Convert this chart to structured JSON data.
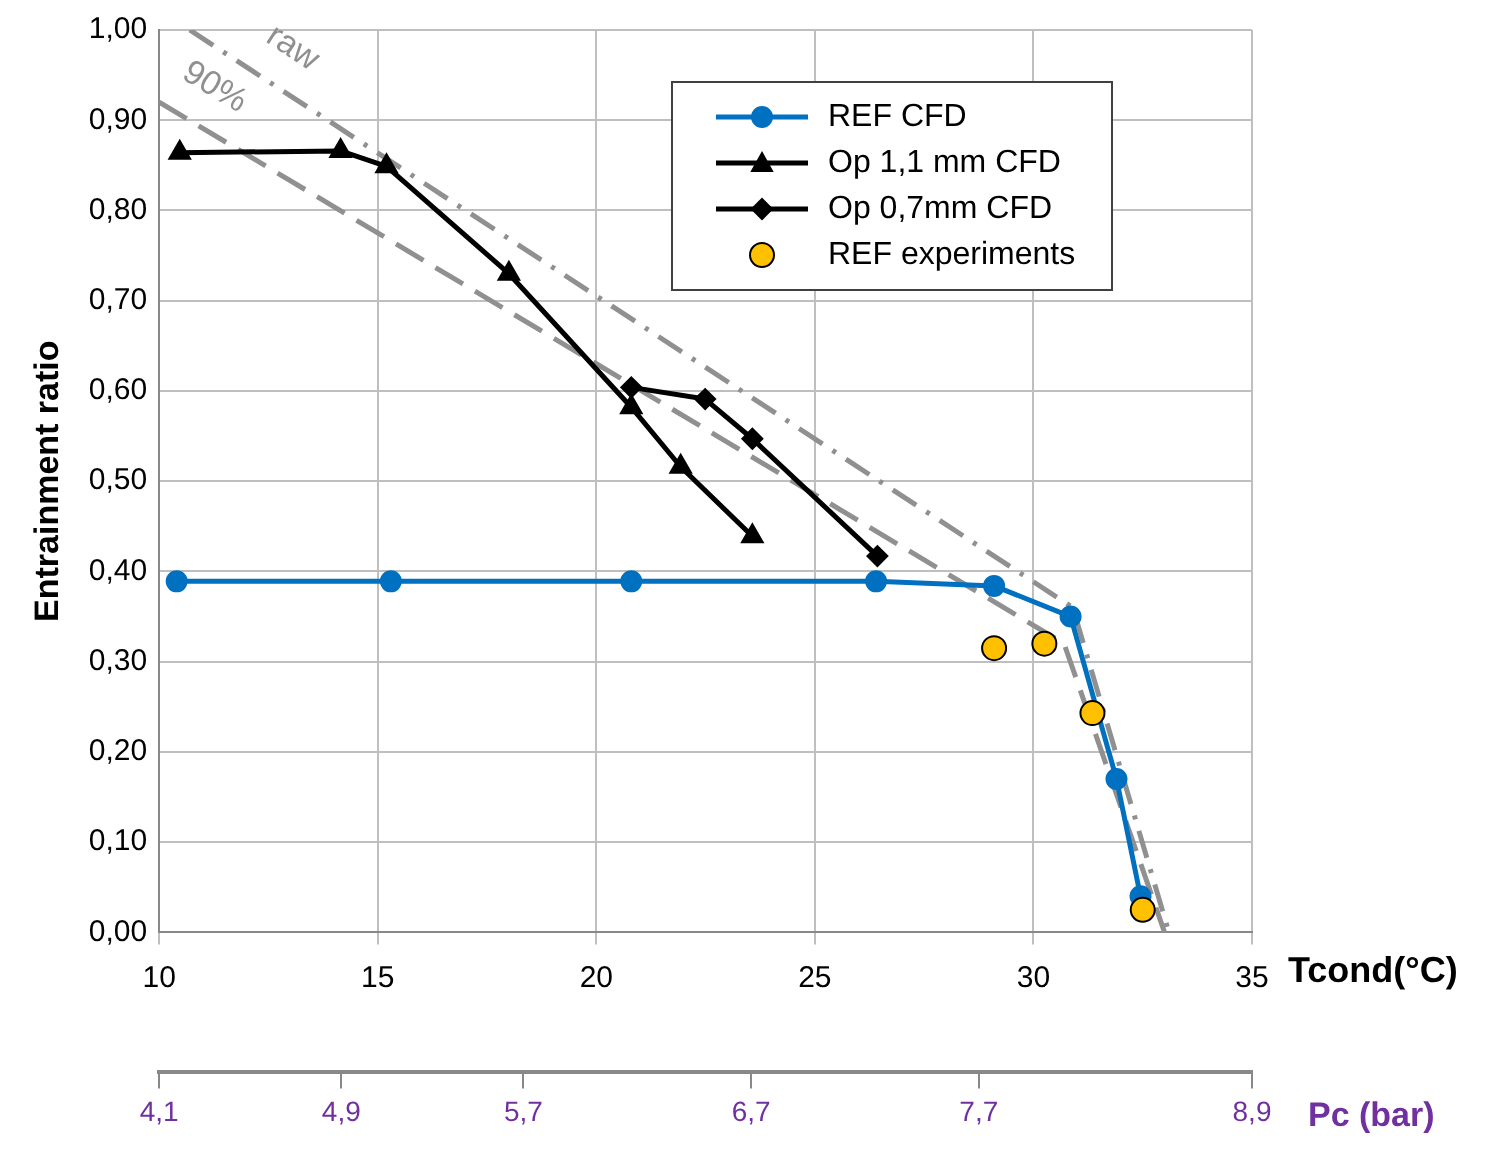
{
  "chart_data": {
    "type": "line",
    "xlabel": "Tcond(°C)",
    "ylabel": "Entrainment ratio",
    "x2label": "Pc (bar)",
    "xlim": [
      10,
      35
    ],
    "xticks": [
      10,
      15,
      20,
      25,
      30,
      35
    ],
    "x2lim": [
      4.1,
      8.9
    ],
    "x2ticks": [
      {
        "value": 4.1,
        "label": "4,1"
      },
      {
        "value": 4.9,
        "label": "4,9"
      },
      {
        "value": 5.7,
        "label": "5,7"
      },
      {
        "value": 6.7,
        "label": "6,7"
      },
      {
        "value": 7.7,
        "label": "7,7"
      },
      {
        "value": 8.9,
        "label": "8,9"
      }
    ],
    "ylim": [
      0,
      1
    ],
    "yticks": [
      {
        "value": 0,
        "label": "0,00"
      },
      {
        "value": 0.1,
        "label": "0,10"
      },
      {
        "value": 0.2,
        "label": "0,20"
      },
      {
        "value": 0.3,
        "label": "0,30"
      },
      {
        "value": 0.4,
        "label": "0,40"
      },
      {
        "value": 0.5,
        "label": "0,50"
      },
      {
        "value": 0.6,
        "label": "0,60"
      },
      {
        "value": 0.7,
        "label": "0,70"
      },
      {
        "value": 0.8,
        "label": "0,80"
      },
      {
        "value": 0.9,
        "label": "0,90"
      },
      {
        "value": 1,
        "label": "1,00"
      }
    ],
    "grid": true,
    "legend": "top right",
    "series": [
      {
        "name": "REF CFD",
        "type": "line",
        "color": "#0070c0",
        "marker": "circle",
        "line_style": "solid",
        "x": [
          10.4,
          15.3,
          20.8,
          26.4,
          29.1,
          30.85,
          31.9,
          32.45
        ],
        "values": [
          0.389,
          0.389,
          0.389,
          0.389,
          0.384,
          0.35,
          0.17,
          0.04
        ]
      },
      {
        "name": "Op 1,1 mm CFD",
        "type": "line",
        "color": "#000000",
        "marker": "triangle",
        "line_style": "solid",
        "x": [
          10.47,
          14.15,
          15.2,
          18.0,
          20.8,
          21.93,
          23.57
        ],
        "values": [
          0.864,
          0.866,
          0.849,
          0.73,
          0.582,
          0.516,
          0.439
        ]
      },
      {
        "name": "Op 0,7mm CFD",
        "type": "line",
        "color": "#000000",
        "marker": "diamond",
        "line_style": "solid",
        "x": [
          20.8,
          22.49,
          23.57,
          26.43
        ],
        "values": [
          0.604,
          0.591,
          0.547,
          0.417
        ]
      },
      {
        "name": "REF experiments",
        "type": "scatter",
        "color": "#ffc000",
        "marker": "circle",
        "x": [
          29.1,
          30.25,
          31.35,
          32.5
        ],
        "values": [
          0.315,
          0.32,
          0.243,
          0.025
        ]
      },
      {
        "name": "raw",
        "type": "line",
        "color": "#909090",
        "marker": "none",
        "line_style": "dotted",
        "x": [
          10.7,
          30.9,
          33.1
        ],
        "values": [
          1.0,
          0.36,
          0
        ]
      },
      {
        "name": "90%",
        "type": "line",
        "color": "#909090",
        "marker": "none",
        "line_style": "dashed",
        "x": [
          10,
          30.7,
          33.0
        ],
        "values": [
          0.92,
          0.32,
          0
        ]
      }
    ]
  }
}
